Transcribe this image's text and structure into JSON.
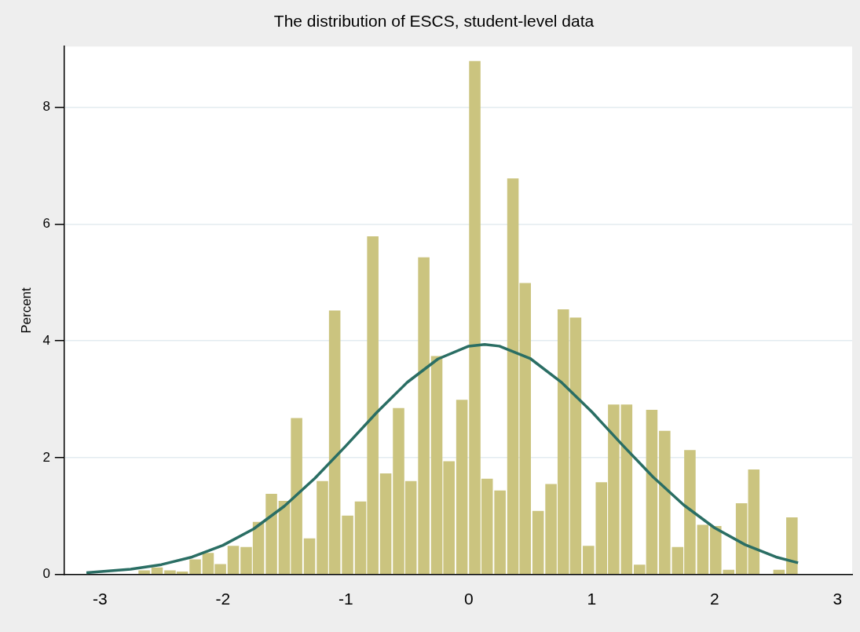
{
  "chart_data": {
    "type": "histogram",
    "title": "The distribution of ESCS, student-level data",
    "ylabel": "Percent",
    "bins": [
      -2.69,
      -2.59,
      -2.48,
      -2.38,
      -2.28,
      -2.17,
      -2.07,
      -1.97,
      -1.86,
      -1.76,
      -1.66,
      -1.55,
      -1.45,
      -1.35,
      -1.24,
      -1.14,
      -1.04,
      -0.93,
      -0.83,
      -0.73,
      -0.62,
      -0.52,
      -0.42,
      -0.31,
      -0.21,
      -0.11,
      0.0,
      0.1,
      0.2,
      0.31,
      0.41,
      0.51,
      0.62,
      0.72,
      0.82,
      0.92,
      1.03,
      1.13,
      1.23,
      1.34,
      1.44,
      1.54,
      1.65,
      1.75,
      1.85,
      1.96,
      2.06,
      2.17,
      2.27,
      2.37,
      2.47,
      2.58,
      2.68
    ],
    "values": [
      0.07,
      0.12,
      0.07,
      0.05,
      0.26,
      0.37,
      0.18,
      0.49,
      0.47,
      0.9,
      1.38,
      1.26,
      2.68,
      0.62,
      1.6,
      4.52,
      1.01,
      1.25,
      5.79,
      1.73,
      2.85,
      1.6,
      5.43,
      3.74,
      1.94,
      2.99,
      8.79,
      1.64,
      1.44,
      6.78,
      4.99,
      1.09,
      1.55,
      4.54,
      4.4,
      0.49,
      1.58,
      2.91,
      2.91,
      0.17,
      2.82,
      2.46,
      0.47,
      2.13,
      0.85,
      0.83,
      0.08,
      1.22,
      1.8,
      0,
      0.08,
      0.98
    ],
    "color": "#cbc47f",
    "series": [
      {
        "type": "line",
        "color": "#2a6e64",
        "x": [
          -3.11,
          -2.75,
          -2.5,
          -2.25,
          -2.0,
          -1.75,
          -1.5,
          -1.25,
          -1.0,
          -0.75,
          -0.5,
          -0.25,
          0,
          0.13,
          0.25,
          0.5,
          0.75,
          1.0,
          1.25,
          1.5,
          1.75,
          2.0,
          2.25,
          2.5,
          2.68
        ],
        "values": [
          0.03,
          0.09,
          0.17,
          0.3,
          0.5,
          0.78,
          1.17,
          1.65,
          2.2,
          2.77,
          3.29,
          3.69,
          3.91,
          3.94,
          3.91,
          3.7,
          3.3,
          2.79,
          2.22,
          1.67,
          1.19,
          0.8,
          0.51,
          0.3,
          0.2
        ]
      }
    ],
    "xlim": [
      -3.29,
      3.12
    ],
    "xticks": [
      -3,
      -2,
      -1,
      0,
      1,
      2,
      3
    ],
    "ylim": [
      0,
      9.04
    ],
    "yticks": [
      0,
      2,
      4,
      6,
      8
    ],
    "grid": "y",
    "legend": false
  }
}
